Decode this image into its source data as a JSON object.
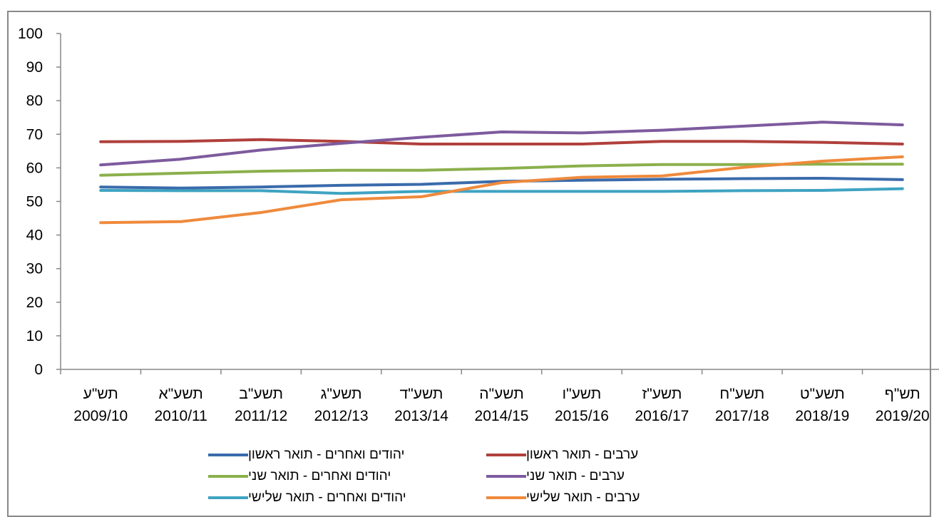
{
  "chart_data": {
    "type": "line",
    "title": "",
    "xlabel": "",
    "ylabel": "",
    "ylim": [
      0,
      100
    ],
    "yticks": [
      0,
      10,
      20,
      30,
      40,
      50,
      60,
      70,
      80,
      90,
      100
    ],
    "grid": false,
    "legend_position": "bottom",
    "categories": [
      {
        "heb": "תש\"ע",
        "year": "2009/10"
      },
      {
        "heb": "תשע\"א",
        "year": "2010/11"
      },
      {
        "heb": "תשע\"ב",
        "year": "2011/12"
      },
      {
        "heb": "תשע\"ג",
        "year": "2012/13"
      },
      {
        "heb": "תשע\"ד",
        "year": "2013/14"
      },
      {
        "heb": "תשע\"ה",
        "year": "2014/15"
      },
      {
        "heb": "תשע\"ו",
        "year": "2015/16"
      },
      {
        "heb": "תשע\"ז",
        "year": "2016/17"
      },
      {
        "heb": "תשע\"ח",
        "year": "2017/18"
      },
      {
        "heb": "תשע\"ט",
        "year": "2018/19"
      },
      {
        "heb": "תש\"ף",
        "year": "2019/20"
      }
    ],
    "series": [
      {
        "name": "יהודים ואחרים - תואר ראשון",
        "color": "#3a6bab",
        "values": [
          54.3,
          54.0,
          54.3,
          54.8,
          55.1,
          56.0,
          56.3,
          56.6,
          56.8,
          56.9,
          56.5
        ]
      },
      {
        "name": "ערבים - תואר ראשון",
        "color": "#b0403c",
        "values": [
          67.8,
          67.9,
          68.4,
          67.9,
          67.1,
          67.1,
          67.1,
          67.9,
          67.9,
          67.6,
          67.1
        ]
      },
      {
        "name": "יהודים ואחרים - תואר שני",
        "color": "#8bb04c",
        "values": [
          57.8,
          58.4,
          59.0,
          59.3,
          59.3,
          59.8,
          60.6,
          61.0,
          61.0,
          61.1,
          61.1
        ]
      },
      {
        "name": "ערבים - תואר שני",
        "color": "#7d5b9e",
        "values": [
          60.9,
          62.6,
          65.3,
          67.3,
          69.1,
          70.7,
          70.4,
          71.2,
          72.4,
          73.6,
          72.8
        ]
      },
      {
        "name": "יהודים ואחרים - תואר שלישי",
        "color": "#3fa3c2",
        "values": [
          53.3,
          53.2,
          53.2,
          52.4,
          53.0,
          53.0,
          53.0,
          53.0,
          53.2,
          53.3,
          53.8
        ]
      },
      {
        "name": "ערבים - תואר שלישי",
        "color": "#ef8a3c",
        "values": [
          43.7,
          44.0,
          46.7,
          50.5,
          51.4,
          55.6,
          57.2,
          57.6,
          60.1,
          62.0,
          63.3
        ]
      }
    ]
  }
}
